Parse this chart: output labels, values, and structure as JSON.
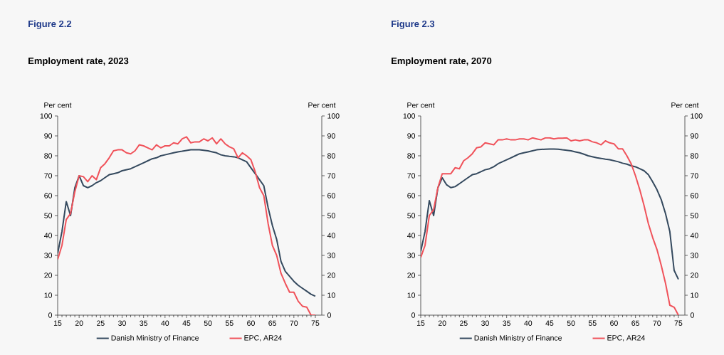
{
  "chart_data": [
    {
      "type": "line",
      "title": "Figure 2.2",
      "subtitle": "Employment rate, 2023",
      "ylabel": "Per cent",
      "y2label": "Per cent",
      "x": [
        15,
        16,
        17,
        18,
        19,
        20,
        21,
        22,
        23,
        24,
        25,
        26,
        27,
        28,
        29,
        30,
        31,
        32,
        33,
        34,
        35,
        36,
        37,
        38,
        39,
        40,
        41,
        42,
        43,
        44,
        45,
        46,
        47,
        48,
        49,
        50,
        51,
        52,
        53,
        54,
        55,
        56,
        57,
        58,
        59,
        60,
        61,
        62,
        63,
        64,
        65,
        66,
        67,
        68,
        69,
        70,
        71,
        72,
        73,
        74,
        75
      ],
      "series": [
        {
          "name": "Danish Ministry of Finance",
          "color": "#34495e",
          "values": [
            31,
            42,
            57,
            50,
            64,
            70,
            65,
            64,
            65,
            66.5,
            67.5,
            69,
            70.5,
            71,
            71.5,
            72.5,
            73,
            73.5,
            74.5,
            75.5,
            76.5,
            77.5,
            78.5,
            79,
            80,
            80.5,
            81,
            81.5,
            82,
            82.3,
            82.7,
            83,
            83,
            83,
            82.8,
            82.5,
            82,
            81.5,
            80.5,
            80,
            79.7,
            79.5,
            79,
            78,
            77,
            74,
            71,
            68,
            65,
            54,
            45,
            38,
            27,
            22,
            19.5,
            17,
            15,
            13.5,
            12,
            10.5,
            9.5
          ]
        },
        {
          "name": "EPC, AR24",
          "color": "#f0525a",
          "values": [
            28,
            35,
            48,
            51,
            62,
            70,
            69.5,
            67,
            70,
            68,
            74,
            76,
            79,
            82.5,
            83,
            83,
            81.5,
            81,
            82.5,
            85.5,
            85,
            84,
            83,
            85.5,
            84,
            85,
            85,
            86.5,
            86,
            88.5,
            89.5,
            86.5,
            87,
            87,
            88.5,
            87.5,
            89,
            86,
            88.5,
            86,
            84.5,
            83.5,
            79,
            81.5,
            80,
            78,
            72,
            64,
            60,
            46,
            35,
            30,
            21,
            16,
            11.5,
            11.5,
            7,
            4.5,
            4,
            0,
            0
          ]
        }
      ],
      "xlim": [
        15,
        76.5
      ],
      "xticks": [
        15,
        20,
        25,
        30,
        35,
        40,
        45,
        50,
        55,
        60,
        65,
        70,
        75
      ],
      "ylim": [
        0,
        100
      ],
      "yticks": [
        0,
        10,
        20,
        30,
        40,
        50,
        60,
        70,
        80,
        90,
        100
      ],
      "y2lim": [
        0,
        100
      ],
      "y2ticks": [
        0,
        10,
        20,
        30,
        40,
        50,
        60,
        70,
        80,
        90,
        100
      ],
      "legend": "bottom",
      "grid": false,
      "line_style": "solid",
      "marker": "none"
    },
    {
      "type": "line",
      "title": "Figure 2.3",
      "subtitle": "Employment rate, 2070",
      "ylabel": "Per cent",
      "y2label": "Per cent",
      "x": [
        15,
        16,
        17,
        18,
        19,
        20,
        21,
        22,
        23,
        24,
        25,
        26,
        27,
        28,
        29,
        30,
        31,
        32,
        33,
        34,
        35,
        36,
        37,
        38,
        39,
        40,
        41,
        42,
        43,
        44,
        45,
        46,
        47,
        48,
        49,
        50,
        51,
        52,
        53,
        54,
        55,
        56,
        57,
        58,
        59,
        60,
        61,
        62,
        63,
        64,
        65,
        66,
        67,
        68,
        69,
        70,
        71,
        72,
        73,
        74,
        75
      ],
      "series": [
        {
          "name": "Danish Ministry of Finance",
          "color": "#34495e",
          "values": [
            32,
            42,
            57.5,
            50,
            64,
            69,
            65.5,
            64,
            64.5,
            66,
            67.5,
            69,
            70.5,
            71,
            72,
            73,
            73.5,
            74.5,
            76,
            77,
            78,
            79,
            80,
            81,
            81.5,
            82,
            82.5,
            83,
            83.2,
            83.3,
            83.4,
            83.4,
            83.3,
            83,
            82.8,
            82.5,
            82,
            81.5,
            80.8,
            80,
            79.5,
            79,
            78.7,
            78.3,
            78,
            77.5,
            77,
            76.3,
            75.8,
            75,
            74.5,
            73.5,
            72.5,
            70.5,
            67,
            63,
            58,
            51,
            42,
            22.5,
            18
          ]
        },
        {
          "name": "EPC, AR24",
          "color": "#f0525a",
          "values": [
            29,
            35,
            50,
            53,
            64,
            71,
            71,
            71,
            74,
            73.5,
            77.5,
            79,
            81,
            84,
            84.5,
            86.5,
            86,
            85.5,
            88,
            88,
            88.5,
            88,
            88,
            88.5,
            88.5,
            88,
            89,
            88.5,
            88,
            89,
            89,
            88.5,
            88.8,
            88.8,
            89,
            87.5,
            88,
            87.5,
            88,
            88,
            87,
            86.5,
            85.5,
            87.5,
            86.5,
            86,
            83.5,
            83.5,
            80,
            76,
            70,
            63,
            55,
            46,
            39,
            33,
            25,
            16,
            5,
            4,
            0
          ]
        }
      ],
      "xlim": [
        15,
        76.5
      ],
      "xticks": [
        15,
        20,
        25,
        30,
        35,
        40,
        45,
        50,
        55,
        60,
        65,
        70,
        75
      ],
      "ylim": [
        0,
        100
      ],
      "yticks": [
        0,
        10,
        20,
        30,
        40,
        50,
        60,
        70,
        80,
        90,
        100
      ],
      "y2lim": [
        0,
        100
      ],
      "y2ticks": [
        0,
        10,
        20,
        30,
        40,
        50,
        60,
        70,
        80,
        90,
        100
      ],
      "legend": "bottom",
      "grid": false,
      "line_style": "solid",
      "marker": "none"
    }
  ]
}
